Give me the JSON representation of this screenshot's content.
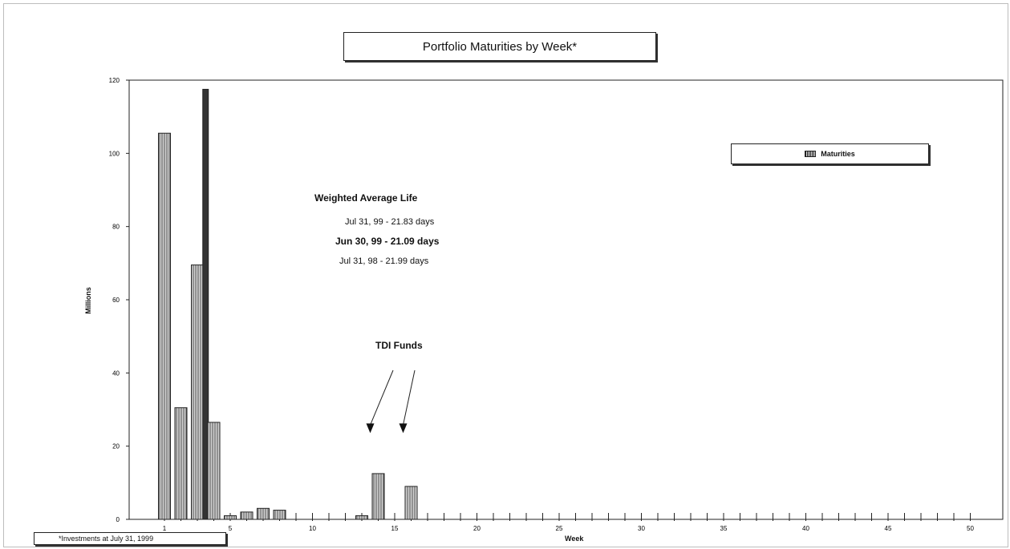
{
  "chart_data": {
    "type": "bar",
    "title": "Portfolio Maturities by Week*",
    "xlabel": "Week",
    "ylabel": "Millions",
    "xlim": [
      0,
      51
    ],
    "ylim": [
      0,
      120
    ],
    "yticks": [
      0,
      20,
      40,
      60,
      80,
      100,
      120
    ],
    "xticks": [
      1,
      5,
      10,
      15,
      20,
      25,
      30,
      35,
      40,
      45,
      50
    ],
    "legend": [
      "Maturities"
    ],
    "legend_position": "top-right",
    "series": [
      {
        "name": "Maturities",
        "x": [
          1,
          2,
          3,
          3.5,
          4,
          5,
          6,
          7,
          8,
          13,
          14,
          16
        ],
        "values": [
          105.5,
          30.5,
          69.5,
          117.5,
          26.5,
          1,
          2,
          3,
          2.5,
          1,
          12.5,
          9
        ]
      }
    ],
    "annotations": {
      "wal_heading": "Weighted Average Life",
      "wal_line1": "Jul 31, 99 - 21.83 days",
      "wal_line2": "Jun 30, 99 - 21.09 days",
      "wal_line3": "Jul 31, 98 - 21.99 days",
      "tdi_label": "TDI Funds",
      "tdi_targets_week": [
        14,
        16
      ]
    },
    "footnote": "*Investments at July 31, 1999"
  }
}
